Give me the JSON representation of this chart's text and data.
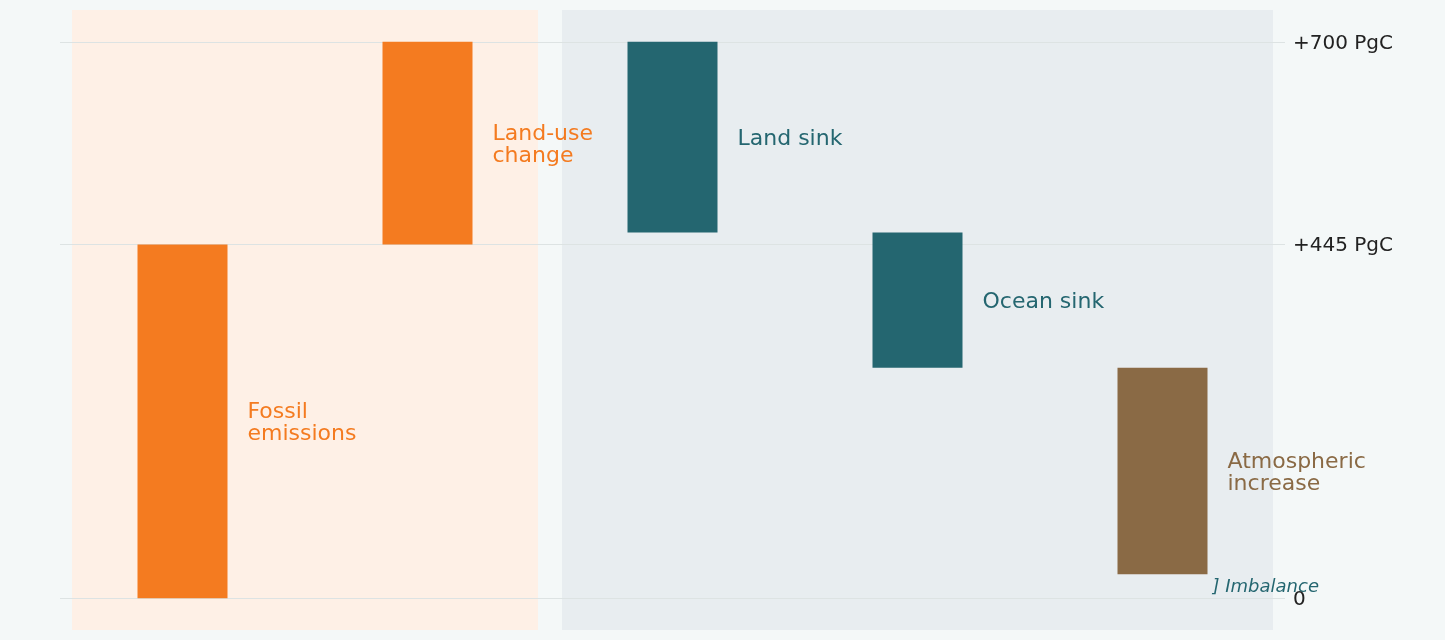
{
  "chart_data": {
    "type": "bar",
    "categories": [
      "Fossil emissions",
      "Land-use change",
      "Land sink",
      "Ocean sink",
      "Atmospheric increase"
    ],
    "values": [
      445,
      255,
      240,
      170,
      260
    ],
    "base": [
      0,
      445,
      460,
      290,
      30
    ],
    "colors": [
      "#f47b20",
      "#f47b20",
      "#246670",
      "#246670",
      "#8a6a45"
    ],
    "ylim": [
      -40,
      740
    ],
    "yticks": [
      {
        "value": 0,
        "label": "0"
      },
      {
        "value": 445,
        "label": "+445 PgC"
      },
      {
        "value": 700,
        "label": "+700 PgC"
      }
    ],
    "grid": "y",
    "annotations": [
      "] Imbalance"
    ]
  }
}
